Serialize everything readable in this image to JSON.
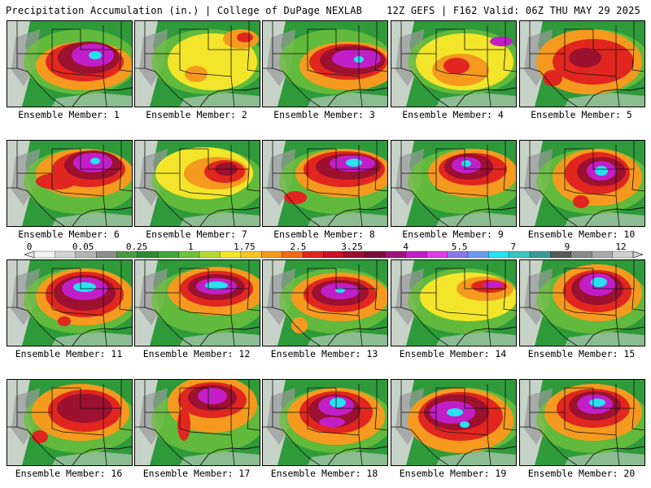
{
  "header": {
    "left": "Precipitation Accumulation (in.) | College of DuPage NEXLAB",
    "right": "12Z GEFS | F162 Valid: 06Z THU MAY 29 2025"
  },
  "colors": {
    "map_bg": "#2f9a3a",
    "dry": "#d8d8d8",
    "trace": "#9a9a9a",
    "light": "#6ec23c",
    "yellow": "#f3e62a",
    "orange": "#f59a1e",
    "red": "#e0261e",
    "dark_red": "#9c1030",
    "magenta": "#c21ec8",
    "cyan": "#28e0f0"
  },
  "colorbar": {
    "labels": [
      "0",
      "0.05",
      "0.25",
      "1",
      "1.75",
      "2.5",
      "3.25",
      "4",
      "5.5",
      "7",
      "9",
      "12"
    ],
    "colors": [
      "#f2f2f2",
      "#d4d4d4",
      "#b4b4b4",
      "#8e8e8e",
      "#4a9a42",
      "#2f8a36",
      "#3fa83a",
      "#6ec23c",
      "#b4d832",
      "#f3e62a",
      "#f8c428",
      "#f59a1e",
      "#f26a1a",
      "#e0261e",
      "#c81428",
      "#9c1030",
      "#7a0e3a",
      "#a0147a",
      "#c21ec8",
      "#e23ce8",
      "#8a78e8",
      "#6a9aee",
      "#28e0f0",
      "#3cc6c0",
      "#3a9a9a",
      "#5a5a5a",
      "#8a8a8a",
      "#aaaaaa",
      "#cfcfcf"
    ]
  },
  "members": [
    {
      "label": "Ensemble Member: 1",
      "blobs": [
        [
          "orange",
          95,
          55,
          60,
          30
        ],
        [
          "red",
          95,
          50,
          48,
          24
        ],
        [
          "dark_red",
          100,
          45,
          38,
          20
        ],
        [
          "magenta",
          105,
          42,
          26,
          14
        ],
        [
          "cyan",
          108,
          42,
          8,
          5
        ]
      ]
    },
    {
      "label": "Ensemble Member: 2",
      "blobs": [
        [
          "yellow",
          95,
          50,
          55,
          35
        ],
        [
          "orange",
          130,
          22,
          22,
          12
        ],
        [
          "red",
          135,
          20,
          10,
          6
        ],
        [
          "orange",
          75,
          65,
          14,
          10
        ]
      ]
    },
    {
      "label": "Ensemble Member: 3",
      "blobs": [
        [
          "orange",
          105,
          55,
          60,
          30
        ],
        [
          "red",
          105,
          50,
          48,
          22
        ],
        [
          "dark_red",
          110,
          48,
          40,
          18
        ],
        [
          "magenta",
          115,
          46,
          30,
          12
        ],
        [
          "cyan",
          118,
          47,
          6,
          4
        ]
      ]
    },
    {
      "label": "Ensemble Member: 4",
      "blobs": [
        [
          "yellow",
          90,
          50,
          60,
          35
        ],
        [
          "orange",
          85,
          60,
          35,
          20
        ],
        [
          "red",
          80,
          55,
          16,
          10
        ],
        [
          "magenta",
          135,
          25,
          14,
          6
        ]
      ]
    },
    {
      "label": "Ensemble Member: 5",
      "blobs": [
        [
          "orange",
          85,
          50,
          65,
          40
        ],
        [
          "red",
          90,
          50,
          50,
          28
        ],
        [
          "dark_red",
          80,
          45,
          20,
          12
        ],
        [
          "red",
          40,
          70,
          12,
          10
        ]
      ]
    },
    {
      "label": "Ensemble Member: 6",
      "blobs": [
        [
          "orange",
          95,
          40,
          60,
          30
        ],
        [
          "red",
          100,
          35,
          45,
          22
        ],
        [
          "dark_red",
          105,
          30,
          35,
          18
        ],
        [
          "magenta",
          105,
          27,
          24,
          12
        ],
        [
          "cyan",
          108,
          25,
          6,
          4
        ],
        [
          "red",
          60,
          50,
          25,
          10
        ]
      ]
    },
    {
      "label": "Ensemble Member: 7",
      "blobs": [
        [
          "yellow",
          85,
          40,
          60,
          32
        ],
        [
          "orange",
          100,
          40,
          40,
          20
        ],
        [
          "red",
          110,
          38,
          25,
          14
        ],
        [
          "dark_red",
          112,
          35,
          14,
          8
        ]
      ]
    },
    {
      "label": "Ensemble Member: 8",
      "blobs": [
        [
          "orange",
          100,
          40,
          60,
          30
        ],
        [
          "red",
          100,
          35,
          50,
          22
        ],
        [
          "dark_red",
          105,
          32,
          40,
          16
        ],
        [
          "magenta",
          110,
          28,
          28,
          10
        ],
        [
          "cyan",
          112,
          27,
          10,
          5
        ],
        [
          "red",
          40,
          70,
          14,
          8
        ]
      ]
    },
    {
      "label": "Ensemble Member: 9",
      "blobs": [
        [
          "orange",
          100,
          40,
          55,
          30
        ],
        [
          "red",
          100,
          35,
          42,
          20
        ],
        [
          "dark_red",
          95,
          32,
          30,
          16
        ],
        [
          "magenta",
          92,
          30,
          18,
          10
        ],
        [
          "cyan",
          92,
          28,
          6,
          4
        ]
      ]
    },
    {
      "label": "Ensemble Member: 10",
      "blobs": [
        [
          "orange",
          95,
          45,
          55,
          35
        ],
        [
          "red",
          95,
          40,
          40,
          26
        ],
        [
          "dark_red",
          100,
          38,
          30,
          18
        ],
        [
          "magenta",
          100,
          37,
          18,
          12
        ],
        [
          "cyan",
          100,
          37,
          8,
          6
        ],
        [
          "red",
          75,
          75,
          10,
          8
        ]
      ]
    },
    {
      "label": "Ensemble Member: 11",
      "blobs": [
        [
          "orange",
          95,
          45,
          60,
          35
        ],
        [
          "red",
          95,
          42,
          48,
          28
        ],
        [
          "dark_red",
          95,
          40,
          38,
          22
        ],
        [
          "magenta",
          95,
          35,
          28,
          14
        ],
        [
          "cyan",
          95,
          33,
          14,
          6
        ],
        [
          "red",
          70,
          75,
          8,
          6
        ]
      ]
    },
    {
      "label": "Ensemble Member: 12",
      "blobs": [
        [
          "orange",
          100,
          38,
          60,
          30
        ],
        [
          "red",
          100,
          35,
          45,
          22
        ],
        [
          "dark_red",
          100,
          33,
          35,
          16
        ],
        [
          "magenta",
          100,
          32,
          25,
          10
        ],
        [
          "cyan",
          100,
          31,
          14,
          5
        ]
      ]
    },
    {
      "label": "Ensemble Member: 13",
      "blobs": [
        [
          "orange",
          95,
          45,
          60,
          30
        ],
        [
          "red",
          95,
          42,
          45,
          22
        ],
        [
          "dark_red",
          95,
          40,
          35,
          16
        ],
        [
          "magenta",
          95,
          38,
          24,
          10
        ],
        [
          "cyan",
          95,
          37,
          6,
          3
        ],
        [
          "orange",
          45,
          80,
          10,
          10
        ]
      ]
    },
    {
      "label": "Ensemble Member: 14",
      "blobs": [
        [
          "yellow",
          95,
          45,
          60,
          30
        ],
        [
          "orange",
          115,
          35,
          35,
          15
        ],
        [
          "red",
          120,
          32,
          22,
          8
        ],
        [
          "magenta",
          125,
          30,
          12,
          4
        ]
      ]
    },
    {
      "label": "Ensemble Member: 15",
      "blobs": [
        [
          "orange",
          95,
          40,
          55,
          35
        ],
        [
          "red",
          95,
          38,
          42,
          26
        ],
        [
          "dark_red",
          95,
          35,
          32,
          20
        ],
        [
          "magenta",
          95,
          30,
          22,
          14
        ],
        [
          "cyan",
          97,
          27,
          10,
          6
        ]
      ]
    },
    {
      "label": "Ensemble Member: 16",
      "blobs": [
        [
          "orange",
          90,
          40,
          60,
          35
        ],
        [
          "red",
          95,
          38,
          45,
          26
        ],
        [
          "dark_red",
          95,
          35,
          34,
          18
        ],
        [
          "red",
          40,
          70,
          10,
          8
        ]
      ]
    },
    {
      "label": "Ensemble Member: 17",
      "blobs": [
        [
          "orange",
          95,
          30,
          55,
          35
        ],
        [
          "red",
          95,
          25,
          42,
          22
        ],
        [
          "dark_red",
          95,
          22,
          30,
          16
        ],
        [
          "magenta",
          95,
          20,
          18,
          10
        ],
        [
          "red",
          60,
          55,
          8,
          20
        ]
      ]
    },
    {
      "label": "Ensemble Member: 18",
      "blobs": [
        [
          "orange",
          90,
          45,
          60,
          35
        ],
        [
          "red",
          90,
          40,
          45,
          26
        ],
        [
          "dark_red",
          88,
          38,
          32,
          20
        ],
        [
          "magenta",
          90,
          32,
          22,
          12
        ],
        [
          "cyan",
          92,
          28,
          10,
          6
        ],
        [
          "magenta",
          85,
          52,
          16,
          6
        ]
      ]
    },
    {
      "label": "Ensemble Member: 19",
      "blobs": [
        [
          "orange",
          85,
          50,
          65,
          40
        ],
        [
          "red",
          85,
          45,
          52,
          30
        ],
        [
          "dark_red",
          80,
          40,
          40,
          22
        ],
        [
          "magenta",
          75,
          40,
          28,
          14
        ],
        [
          "cyan",
          78,
          40,
          10,
          5
        ],
        [
          "cyan",
          90,
          55,
          6,
          4
        ]
      ]
    },
    {
      "label": "Ensemble Member: 20",
      "blobs": [
        [
          "orange",
          90,
          40,
          60,
          35
        ],
        [
          "red",
          90,
          35,
          45,
          24
        ],
        [
          "dark_red",
          92,
          32,
          32,
          18
        ],
        [
          "magenta",
          92,
          30,
          22,
          12
        ],
        [
          "cyan",
          95,
          28,
          10,
          5
        ]
      ]
    }
  ]
}
